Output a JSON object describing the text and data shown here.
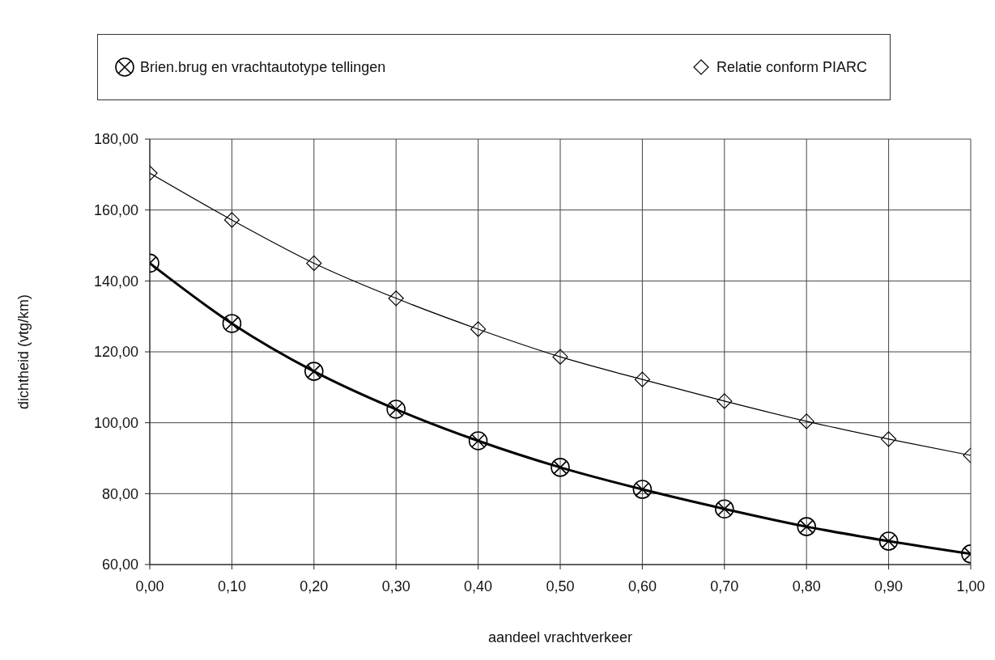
{
  "chart_data": {
    "type": "line",
    "xlabel": "aandeel vrachtverkeer",
    "ylabel": "dichtheid (vtg/km)",
    "x": [
      0,
      0.1,
      0.2,
      0.3,
      0.4,
      0.5,
      0.6,
      0.7,
      0.8,
      0.9,
      1.0
    ],
    "series": [
      {
        "name": "Brien.brug en vrachtautotype tellingen",
        "color": "#000000",
        "marker": "circle",
        "values": [
          145,
          128,
          114.5,
          103.8,
          94.9,
          87.4,
          81.2,
          75.7,
          70.7,
          66.6,
          63
        ]
      },
      {
        "name": "Relatie conform PIARC",
        "color": "#000000",
        "marker": "diamond",
        "values": [
          170.4,
          157.2,
          145,
          135.1,
          126.4,
          118.6,
          112.2,
          106.1,
          100.4,
          95.4,
          90.8
        ]
      }
    ],
    "xlim": [
      0,
      1
    ],
    "xticks": [
      {
        "value": 0,
        "label": "0,00"
      },
      {
        "value": 0.1,
        "label": "0,10"
      },
      {
        "value": 0.2,
        "label": "0,20"
      },
      {
        "value": 0.3,
        "label": "0,30"
      },
      {
        "value": 0.4,
        "label": "0,40"
      },
      {
        "value": 0.5,
        "label": "0,50"
      },
      {
        "value": 0.6,
        "label": "0,60"
      },
      {
        "value": 0.7,
        "label": "0,70"
      },
      {
        "value": 0.8,
        "label": "0,80"
      },
      {
        "value": 0.9,
        "label": "0,90"
      },
      {
        "value": 1,
        "label": "1,00"
      }
    ],
    "ylim": [
      60,
      180
    ],
    "yticks": [
      {
        "value": 60,
        "label": "60,00"
      },
      {
        "value": 80,
        "label": "80,00"
      },
      {
        "value": 100,
        "label": "100,00"
      },
      {
        "value": 120,
        "label": "120,00"
      },
      {
        "value": 140,
        "label": "140,00"
      },
      {
        "value": 160,
        "label": "160,00"
      },
      {
        "value": 180,
        "label": "180,00"
      }
    ],
    "grid": true,
    "legend": "top",
    "line_style": "solid"
  }
}
